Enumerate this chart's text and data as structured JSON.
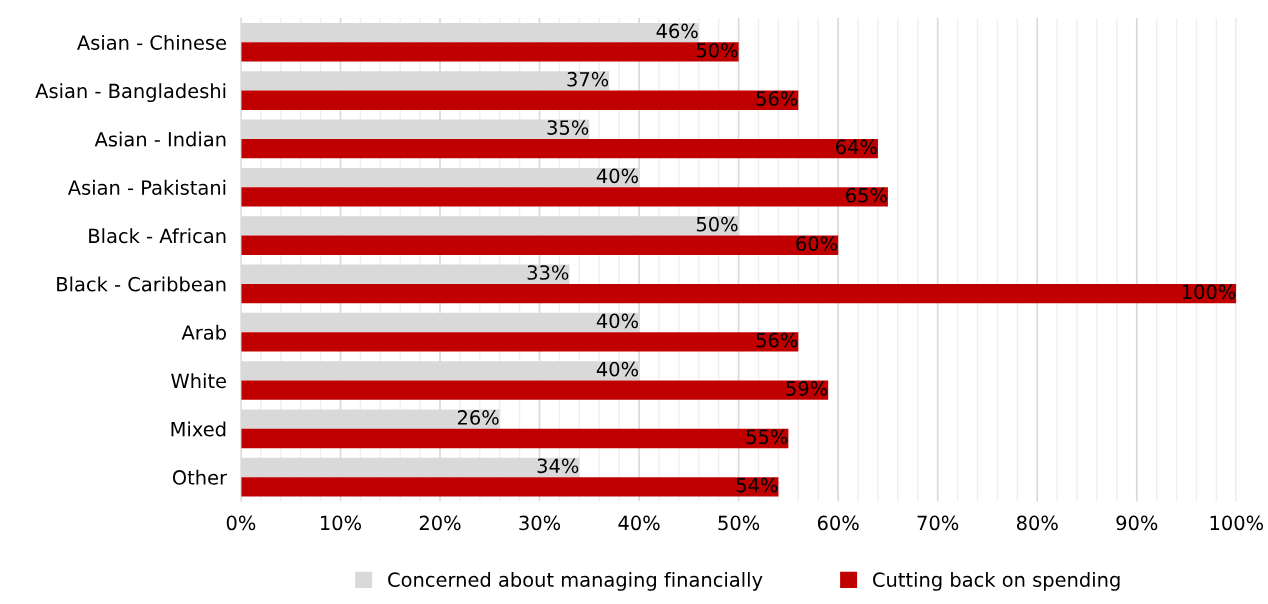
{
  "chart_data": {
    "type": "bar",
    "orientation": "horizontal",
    "categories": [
      "Asian - Chinese",
      "Asian - Bangladeshi",
      "Asian - Indian",
      "Asian - Pakistani",
      "Black - African",
      "Black - Caribbean",
      "Arab",
      "White",
      "Mixed",
      "Other"
    ],
    "series": [
      {
        "name": "Concerned about managing financially",
        "color": "#d9d9d9",
        "values": [
          46,
          37,
          35,
          40,
          50,
          33,
          40,
          40,
          26,
          34
        ],
        "value_labels": [
          "46%",
          "37%",
          "35%",
          "40%",
          "50%",
          "33%",
          "40%",
          "40%",
          "26%",
          "34%"
        ]
      },
      {
        "name": "Cutting back on spending",
        "color": "#c00000",
        "values": [
          50,
          56,
          64,
          65,
          60,
          100,
          56,
          59,
          55,
          54
        ],
        "value_labels": [
          "50%",
          "56%",
          "64%",
          "65%",
          "60%",
          "100%",
          "56%",
          "59%",
          "55%",
          "54%"
        ]
      }
    ],
    "xlim": [
      0,
      100
    ],
    "xticks": [
      {
        "value": 0,
        "label": "0%"
      },
      {
        "value": 10,
        "label": "10%"
      },
      {
        "value": 20,
        "label": "20%"
      },
      {
        "value": 30,
        "label": "30%"
      },
      {
        "value": 40,
        "label": "40%"
      },
      {
        "value": 50,
        "label": "50%"
      },
      {
        "value": 60,
        "label": "60%"
      },
      {
        "value": 70,
        "label": "70%"
      },
      {
        "value": 80,
        "label": "80%"
      },
      {
        "value": 90,
        "label": "90%"
      },
      {
        "value": 100,
        "label": "100%"
      }
    ],
    "grid": "x",
    "legend": "bottom"
  }
}
